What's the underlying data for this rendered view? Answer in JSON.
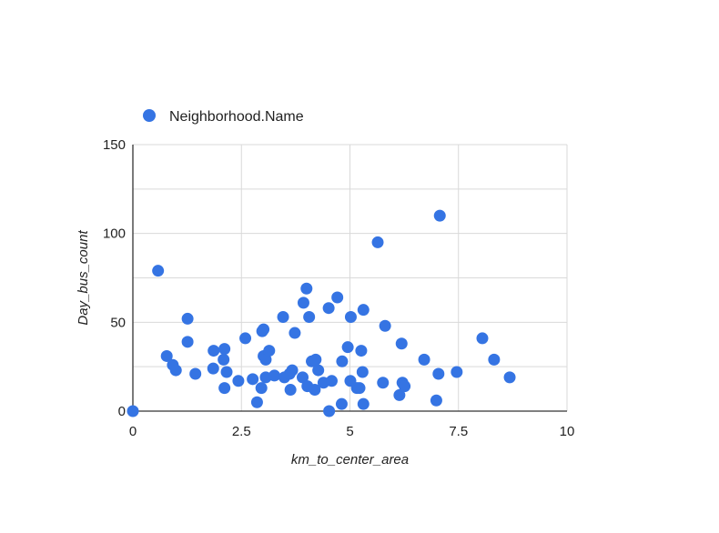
{
  "chart_data": {
    "type": "scatter",
    "title": "",
    "xlabel": "km_to_center_area",
    "ylabel": "Day_bus_count",
    "xlim": [
      0,
      10
    ],
    "ylim": [
      0,
      150
    ],
    "x_ticks": [
      "0",
      "2.5",
      "5",
      "7.5",
      "10"
    ],
    "y_ticks": [
      "0",
      "50",
      "100",
      "150"
    ],
    "grid": true,
    "legend_position": "top-left",
    "series": [
      {
        "name": "Neighborhood.Name",
        "color": "#3574e3",
        "points": [
          [
            0.0,
            0
          ],
          [
            0.58,
            79
          ],
          [
            0.78,
            31
          ],
          [
            0.92,
            26
          ],
          [
            0.99,
            23
          ],
          [
            1.26,
            52
          ],
          [
            1.26,
            39
          ],
          [
            1.44,
            21
          ],
          [
            1.85,
            24
          ],
          [
            1.86,
            34
          ],
          [
            2.09,
            29
          ],
          [
            2.11,
            35
          ],
          [
            2.11,
            13
          ],
          [
            2.16,
            22
          ],
          [
            2.43,
            17
          ],
          [
            2.59,
            41
          ],
          [
            2.76,
            18
          ],
          [
            2.86,
            5
          ],
          [
            2.96,
            13
          ],
          [
            2.98,
            45
          ],
          [
            3.01,
            46
          ],
          [
            3.01,
            31
          ],
          [
            3.06,
            19
          ],
          [
            3.06,
            29
          ],
          [
            3.14,
            34
          ],
          [
            3.26,
            20
          ],
          [
            3.46,
            53
          ],
          [
            3.49,
            19
          ],
          [
            3.61,
            21
          ],
          [
            3.63,
            12
          ],
          [
            3.67,
            23
          ],
          [
            3.73,
            44
          ],
          [
            3.91,
            19
          ],
          [
            3.93,
            61
          ],
          [
            4.0,
            69
          ],
          [
            4.02,
            14
          ],
          [
            4.06,
            53
          ],
          [
            4.12,
            28
          ],
          [
            4.19,
            12
          ],
          [
            4.21,
            29
          ],
          [
            4.27,
            23
          ],
          [
            4.39,
            16
          ],
          [
            4.51,
            58
          ],
          [
            4.52,
            0
          ],
          [
            4.58,
            17
          ],
          [
            4.71,
            64
          ],
          [
            4.81,
            4
          ],
          [
            4.82,
            28
          ],
          [
            4.95,
            36
          ],
          [
            5.01,
            17
          ],
          [
            5.02,
            53
          ],
          [
            5.16,
            13
          ],
          [
            5.22,
            13
          ],
          [
            5.26,
            34
          ],
          [
            5.29,
            22
          ],
          [
            5.31,
            57
          ],
          [
            5.31,
            4
          ],
          [
            5.64,
            95
          ],
          [
            5.76,
            16
          ],
          [
            5.81,
            48
          ],
          [
            6.14,
            9
          ],
          [
            6.19,
            38
          ],
          [
            6.21,
            16
          ],
          [
            6.26,
            14
          ],
          [
            6.71,
            29
          ],
          [
            6.99,
            6
          ],
          [
            7.04,
            21
          ],
          [
            7.07,
            110
          ],
          [
            7.46,
            22
          ],
          [
            8.05,
            41
          ],
          [
            8.32,
            29
          ],
          [
            8.68,
            19
          ]
        ]
      }
    ]
  }
}
